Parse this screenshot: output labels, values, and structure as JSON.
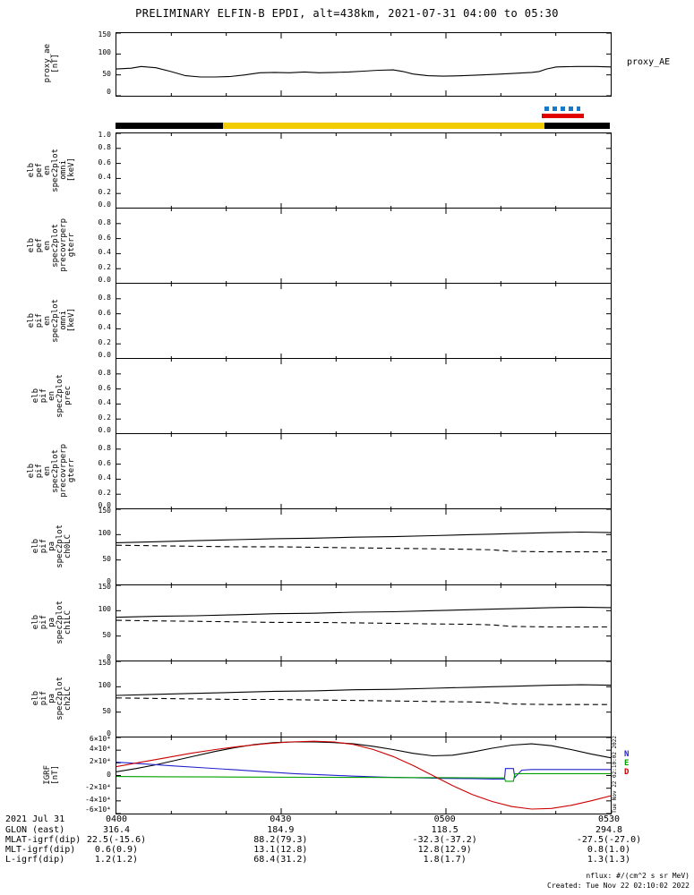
{
  "title": "PRELIMINARY ELFIN-B EPDI, alt=438km, 2021-07-31 04:00 to 05:30",
  "right_label": "proxy_AE",
  "side_timestamp": "Tue Nov 22 02:10:02 2022",
  "footer": {
    "nflux": "nflux: #/(cm^2 s sr MeV)",
    "created": "Created: Tue Nov 22 02:10:02 2022"
  },
  "status_bar": {
    "segments": [
      {
        "color": "#000000",
        "from": 0.0,
        "to": 0.218
      },
      {
        "color": "#f0cc00",
        "from": 0.218,
        "to": 0.868
      },
      {
        "color": "#000000",
        "from": 0.868,
        "to": 1.0
      }
    ]
  },
  "markers": [
    {
      "name": "science-zone-marker-dashed",
      "style": "dashed",
      "color": "#1878c8",
      "from": 0.869,
      "to": 0.942
    },
    {
      "name": "science-zone-marker-solid",
      "style": "solid",
      "color": "#e00000",
      "from": 0.864,
      "to": 0.949
    }
  ],
  "igrf_legend": [
    {
      "label": "N",
      "color": "#2222cc"
    },
    {
      "label": "E",
      "color": "#00a000"
    },
    {
      "label": "D",
      "color": "#cc0000"
    }
  ],
  "ephemeris": {
    "date_label": "2021 Jul 31",
    "rows": [
      {
        "label": "GLON (east)",
        "values": [
          "316.4",
          "184.9",
          "118.5",
          "294.8"
        ]
      },
      {
        "label": "MLAT-igrf(dip)",
        "values": [
          "22.5(-15.6)",
          "88.2(79.3)",
          "-32.3(-37.2)",
          "-27.5(-27.0)"
        ]
      },
      {
        "label": "MLT-igrf(dip)",
        "values": [
          "0.6(0.9)",
          "13.1(12.8)",
          "12.8(12.9)",
          "0.8(1.0)"
        ]
      },
      {
        "label": "L-igrf(dip)",
        "values": [
          "1.2(1.2)",
          "68.4(31.2)",
          "1.8(1.7)",
          "1.3(1.3)"
        ]
      }
    ]
  },
  "chart_data": {
    "type": "line",
    "title": "PRELIMINARY ELFIN-B EPDI, alt=438km, 2021-07-31 04:00 to 05:30",
    "x_axis": {
      "range": [
        "04:00",
        "05:30"
      ],
      "note": "x values in series are normalized fractions of the 04:00-05:30 window",
      "ticks": [
        {
          "label": "0400",
          "frac": 0
        },
        {
          "label": "0430",
          "frac": 0.3333
        },
        {
          "label": "0500",
          "frac": 0.6667
        },
        {
          "label": "0530",
          "frac": 1
        }
      ]
    },
    "panels": [
      {
        "id": "proxy_ae",
        "ylabel_lines": [
          "proxy_ae",
          "[nT]"
        ],
        "ylim": [
          0,
          150
        ],
        "yticks": [
          {
            "v": 0,
            "label": "0"
          },
          {
            "v": 50,
            "label": "50"
          },
          {
            "v": 100,
            "label": "100"
          },
          {
            "v": 150,
            "label": "150"
          }
        ],
        "series": [
          {
            "name": "proxy_ae",
            "color": "#000000",
            "style": "solid",
            "x": [
              0,
              0.03,
              0.05,
              0.08,
              0.11,
              0.14,
              0.17,
              0.2,
              0.23,
              0.26,
              0.29,
              0.32,
              0.35,
              0.38,
              0.41,
              0.44,
              0.47,
              0.5,
              0.53,
              0.56,
              0.58,
              0.6,
              0.63,
              0.66,
              0.7,
              0.74,
              0.78,
              0.81,
              0.84,
              0.855,
              0.87,
              0.89,
              0.93,
              0.97,
              1
            ],
            "y": [
              64,
              66,
              70,
              67,
              58,
              48,
              45,
              45,
              46,
              50,
              55,
              56,
              55,
              57,
              55,
              56,
              57,
              59,
              61,
              62,
              58,
              52,
              48,
              47,
              48,
              50,
              52,
              54,
              56,
              58,
              64,
              69,
              70,
              70,
              69
            ]
          }
        ]
      },
      {
        "id": "elb_pef_en_spec2plot_omni",
        "ylabel_lines": [
          "elb",
          "pef",
          "en",
          "spec2plot",
          "omni",
          "[keV]"
        ],
        "ylim": [
          0,
          1
        ],
        "yticks": [
          {
            "v": 0,
            "label": "0.0"
          },
          {
            "v": 0.2,
            "label": "0.2"
          },
          {
            "v": 0.4,
            "label": "0.4"
          },
          {
            "v": 0.6,
            "label": "0.6"
          },
          {
            "v": 0.8,
            "label": "0.8"
          },
          {
            "v": 1,
            "label": "1.0"
          }
        ],
        "series": []
      },
      {
        "id": "elb_pef_en_spec2plot_precovrperp_gterr",
        "ylabel_lines": [
          "elb",
          "pef",
          "en",
          "spec2plot",
          "precovrperp",
          "gterr"
        ],
        "ylim": [
          0,
          1
        ],
        "yticks": [
          {
            "v": 0,
            "label": "0.0"
          },
          {
            "v": 0.2,
            "label": "0.2"
          },
          {
            "v": 0.4,
            "label": "0.4"
          },
          {
            "v": 0.6,
            "label": "0.6"
          },
          {
            "v": 0.8,
            "label": "0.8"
          }
        ],
        "series": []
      },
      {
        "id": "elb_pif_en_spec2plot_omni",
        "ylabel_lines": [
          "elb",
          "pif",
          "en",
          "spec2plot",
          "omni",
          "[keV]"
        ],
        "ylim": [
          0,
          1
        ],
        "yticks": [
          {
            "v": 0,
            "label": "0.0"
          },
          {
            "v": 0.2,
            "label": "0.2"
          },
          {
            "v": 0.4,
            "label": "0.4"
          },
          {
            "v": 0.6,
            "label": "0.6"
          },
          {
            "v": 0.8,
            "label": "0.8"
          }
        ],
        "series": []
      },
      {
        "id": "elb_pif_en_spec2plot_prec",
        "ylabel_lines": [
          "elb",
          "pif",
          "en",
          "spec2plot",
          "prec"
        ],
        "ylim": [
          0,
          1
        ],
        "yticks": [
          {
            "v": 0,
            "label": "0.0"
          },
          {
            "v": 0.2,
            "label": "0.2"
          },
          {
            "v": 0.4,
            "label": "0.4"
          },
          {
            "v": 0.6,
            "label": "0.6"
          },
          {
            "v": 0.8,
            "label": "0.8"
          }
        ],
        "series": []
      },
      {
        "id": "elb_pif_en_spec2plot_precovrperp_gterr",
        "ylabel_lines": [
          "elb",
          "pif",
          "en",
          "spec2plot",
          "precovrperp",
          "gterr"
        ],
        "ylim": [
          0,
          1
        ],
        "yticks": [
          {
            "v": 0,
            "label": "0.0"
          },
          {
            "v": 0.2,
            "label": "0.2"
          },
          {
            "v": 0.4,
            "label": "0.4"
          },
          {
            "v": 0.6,
            "label": "0.6"
          },
          {
            "v": 0.8,
            "label": "0.8"
          }
        ],
        "series": []
      },
      {
        "id": "elb_pif_pa_spec2plot_ch0LC",
        "ylabel_lines": [
          "elb",
          "pif",
          "pa",
          "spec2plot",
          "ch0LC"
        ],
        "ylim": [
          0,
          150
        ],
        "yticks": [
          {
            "v": 0,
            "label": "0"
          },
          {
            "v": 50,
            "label": "50"
          },
          {
            "v": 100,
            "label": "100"
          },
          {
            "v": 150,
            "label": "150"
          }
        ],
        "series": [
          {
            "name": "ch0lc_upper",
            "color": "#000000",
            "style": "solid",
            "x": [
              0,
              0.08,
              0.16,
              0.24,
              0.32,
              0.4,
              0.48,
              0.56,
              0.64,
              0.72,
              0.76,
              0.8,
              0.88,
              0.94,
              1
            ],
            "y": [
              84,
              86,
              88,
              90,
              92,
              93,
              95,
              96,
              98,
              100,
              101,
              102,
              104,
              105,
              104
            ]
          },
          {
            "name": "ch0lc_lower",
            "color": "#000000",
            "style": "dashed",
            "x": [
              0,
              0.08,
              0.16,
              0.24,
              0.32,
              0.4,
              0.48,
              0.56,
              0.64,
              0.72,
              0.76,
              0.8,
              0.88,
              0.94,
              1
            ],
            "y": [
              79,
              78,
              77,
              76,
              76,
              75,
              74,
              73,
              72,
              71,
              70,
              67,
              66,
              66,
              66
            ]
          }
        ]
      },
      {
        "id": "elb_pif_pa_spec2plot_ch1LC",
        "ylabel_lines": [
          "elb",
          "pif",
          "pa",
          "spec2plot",
          "ch1LC"
        ],
        "ylim": [
          0,
          150
        ],
        "yticks": [
          {
            "v": 0,
            "label": "0"
          },
          {
            "v": 50,
            "label": "50"
          },
          {
            "v": 100,
            "label": "100"
          },
          {
            "v": 150,
            "label": "150"
          }
        ],
        "series": [
          {
            "name": "ch1lc_upper",
            "color": "#000000",
            "style": "solid",
            "x": [
              0,
              0.08,
              0.16,
              0.24,
              0.32,
              0.4,
              0.48,
              0.56,
              0.64,
              0.72,
              0.76,
              0.8,
              0.88,
              0.94,
              1
            ],
            "y": [
              87,
              89,
              90,
              92,
              94,
              95,
              97,
              98,
              100,
              102,
              103,
              104,
              106,
              107,
              106
            ]
          },
          {
            "name": "ch1lc_lower",
            "color": "#000000",
            "style": "dashed",
            "x": [
              0,
              0.08,
              0.16,
              0.24,
              0.32,
              0.4,
              0.48,
              0.56,
              0.64,
              0.72,
              0.76,
              0.8,
              0.88,
              0.94,
              1
            ],
            "y": [
              81,
              80,
              79,
              78,
              77,
              77,
              76,
              75,
              74,
              73,
              72,
              69,
              68,
              68,
              68
            ]
          }
        ]
      },
      {
        "id": "elb_pif_pa_spec2plot_ch2LC",
        "ylabel_lines": [
          "elb",
          "pif",
          "pa",
          "spec2plot",
          "ch2LC"
        ],
        "ylim": [
          0,
          150
        ],
        "yticks": [
          {
            "v": 0,
            "label": "0"
          },
          {
            "v": 50,
            "label": "50"
          },
          {
            "v": 100,
            "label": "100"
          },
          {
            "v": 150,
            "label": "150"
          }
        ],
        "series": [
          {
            "name": "ch2lc_upper",
            "color": "#000000",
            "style": "solid",
            "x": [
              0,
              0.08,
              0.16,
              0.24,
              0.32,
              0.4,
              0.48,
              0.56,
              0.64,
              0.72,
              0.76,
              0.8,
              0.88,
              0.94,
              1
            ],
            "y": [
              83,
              85,
              87,
              89,
              91,
              92,
              94,
              95,
              97,
              99,
              100,
              101,
              103,
              104,
              103
            ]
          },
          {
            "name": "ch2lc_lower",
            "color": "#000000",
            "style": "dashed",
            "x": [
              0,
              0.08,
              0.16,
              0.24,
              0.32,
              0.4,
              0.48,
              0.56,
              0.64,
              0.72,
              0.76,
              0.8,
              0.88,
              0.94,
              1
            ],
            "y": [
              78,
              77,
              76,
              75,
              75,
              74,
              73,
              72,
              71,
              70,
              69,
              66,
              65,
              65,
              65
            ]
          }
        ]
      },
      {
        "id": "igrf",
        "ylabel_lines": [
          "IGRF",
          "[nT]"
        ],
        "y_units": "1e4 nT",
        "ylim": [
          -6,
          6
        ],
        "yticks": [
          {
            "v": -6,
            "label": "-6×10⁴"
          },
          {
            "v": -4,
            "label": "-4×10⁴"
          },
          {
            "v": -2,
            "label": "-2×10⁴"
          },
          {
            "v": 0,
            "label": "0"
          },
          {
            "v": 2,
            "label": "2×10⁴"
          },
          {
            "v": 4,
            "label": "4×10⁴"
          },
          {
            "v": 6,
            "label": "6×10⁴"
          }
        ],
        "series": [
          {
            "name": "igrf_total",
            "color": "#000000",
            "style": "solid",
            "x": [
              0,
              0.04,
              0.08,
              0.12,
              0.16,
              0.2,
              0.24,
              0.28,
              0.32,
              0.36,
              0.4,
              0.44,
              0.48,
              0.52,
              0.56,
              0.6,
              0.64,
              0.68,
              0.72,
              0.76,
              0.8,
              0.84,
              0.88,
              0.92,
              0.96,
              1
            ],
            "y": [
              0.6,
              1.1,
              1.7,
              2.4,
              3.1,
              3.8,
              4.4,
              4.9,
              5.2,
              5.3,
              5.3,
              5.2,
              5,
              4.6,
              4.1,
              3.5,
              3.1,
              3.2,
              3.7,
              4.3,
              4.8,
              5,
              4.7,
              4.1,
              3.4,
              2.8
            ]
          },
          {
            "name": "igrf_n",
            "color": "#2222cc",
            "style": "solid",
            "x": [
              0,
              0.06,
              0.12,
              0.18,
              0.24,
              0.3,
              0.36,
              0.42,
              0.48,
              0.54,
              0.6,
              0.66,
              0.72,
              0.76,
              0.785,
              0.787,
              0.803,
              0.806,
              0.82,
              0.84,
              0.9,
              1
            ],
            "y": [
              2.1,
              1.8,
              1.5,
              1.2,
              0.9,
              0.6,
              0.3,
              0.1,
              -0.1,
              -0.25,
              -0.35,
              -0.45,
              -0.5,
              -0.55,
              -0.55,
              1.1,
              1.1,
              -0.3,
              0.85,
              0.95,
              0.95,
              0.95
            ]
          },
          {
            "name": "igrf_e",
            "color": "#00a000",
            "style": "solid",
            "x": [
              0,
              0.1,
              0.2,
              0.3,
              0.4,
              0.5,
              0.6,
              0.7,
              0.76,
              0.785,
              0.787,
              0.803,
              0.806,
              0.82,
              0.9,
              1
            ],
            "y": [
              -0.15,
              -0.2,
              -0.22,
              -0.25,
              -0.28,
              -0.3,
              -0.32,
              -0.35,
              -0.38,
              -0.38,
              -0.9,
              -0.9,
              0.25,
              0.3,
              0.3,
              0.3
            ]
          },
          {
            "name": "igrf_d",
            "color": "#cc0000",
            "style": "solid",
            "x": [
              0,
              0.05,
              0.1,
              0.15,
              0.2,
              0.25,
              0.3,
              0.35,
              0.4,
              0.44,
              0.48,
              0.52,
              0.56,
              0.6,
              0.64,
              0.68,
              0.72,
              0.76,
              0.8,
              0.84,
              0.88,
              0.92,
              0.96,
              1
            ],
            "y": [
              1.4,
              2.1,
              2.8,
              3.5,
              4.1,
              4.6,
              5,
              5.3,
              5.4,
              5.3,
              4.9,
              4.1,
              3,
              1.6,
              0,
              -1.6,
              -3,
              -4.1,
              -4.9,
              -5.3,
              -5.2,
              -4.7,
              -4,
              -3.2
            ]
          }
        ]
      }
    ]
  }
}
